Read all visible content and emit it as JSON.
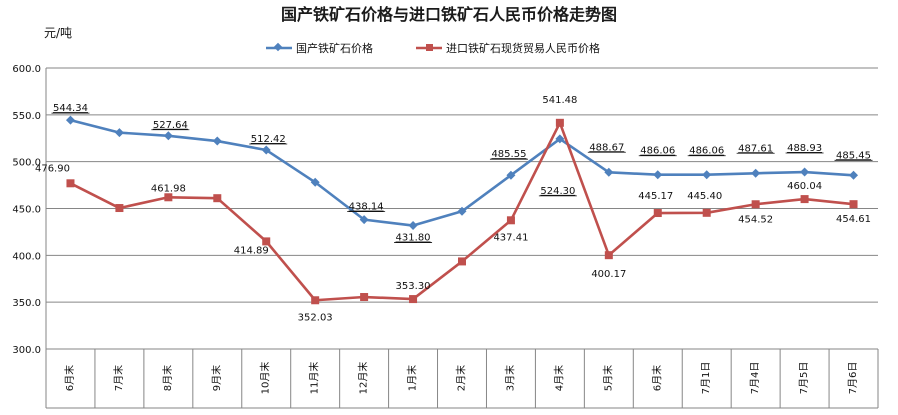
{
  "chart_data": {
    "type": "line",
    "title": "国产铁矿石价格与进口铁矿石人民币价格走势图",
    "ylabel": "元/吨",
    "ylim": [
      300,
      600
    ],
    "yticks": [
      "300.0",
      "350.0",
      "400.0",
      "450.0",
      "500.0",
      "550.0",
      "600.0"
    ],
    "categories": [
      "6月末",
      "7月末",
      "8月末",
      "9月末",
      "10月末",
      "11月末",
      "12月末",
      "1月末",
      "2月末",
      "3月末",
      "4月末",
      "5月末",
      "6月末",
      "7月1日",
      "7月4日",
      "7月5日",
      "7月6日"
    ],
    "grid": true,
    "legend_position": "top",
    "series": [
      {
        "name": "国产铁矿石价格",
        "color": "#4f81bd",
        "marker": "diamond",
        "values": [
          544.34,
          531,
          527.64,
          522,
          512.42,
          478,
          438.14,
          431.8,
          447,
          485.55,
          524.3,
          488.67,
          486.06,
          486.06,
          487.61,
          488.93,
          485.45
        ],
        "labels": [
          "544.34",
          null,
          "527.64",
          null,
          "512.42",
          null,
          "438.14",
          "431.80",
          null,
          "485.55",
          "524.30",
          "488.67",
          "486.06",
          "486.06",
          "487.61",
          "488.93",
          "485.45"
        ]
      },
      {
        "name": "进口铁矿石现货贸易人民币价格",
        "color": "#c0504d",
        "marker": "square",
        "values": [
          476.9,
          450.5,
          461.98,
          461,
          414.89,
          352.03,
          355.5,
          353.3,
          393.5,
          437.41,
          541.48,
          400.17,
          445.17,
          445.4,
          454.52,
          460.04,
          454.61
        ],
        "labels": [
          "476.90",
          null,
          "461.98",
          null,
          "414.89",
          "352.03",
          null,
          "353.30",
          null,
          "437.41",
          "541.48",
          "400.17",
          "445.17",
          "445.40",
          "454.52",
          "460.04",
          "454.61"
        ]
      }
    ]
  }
}
